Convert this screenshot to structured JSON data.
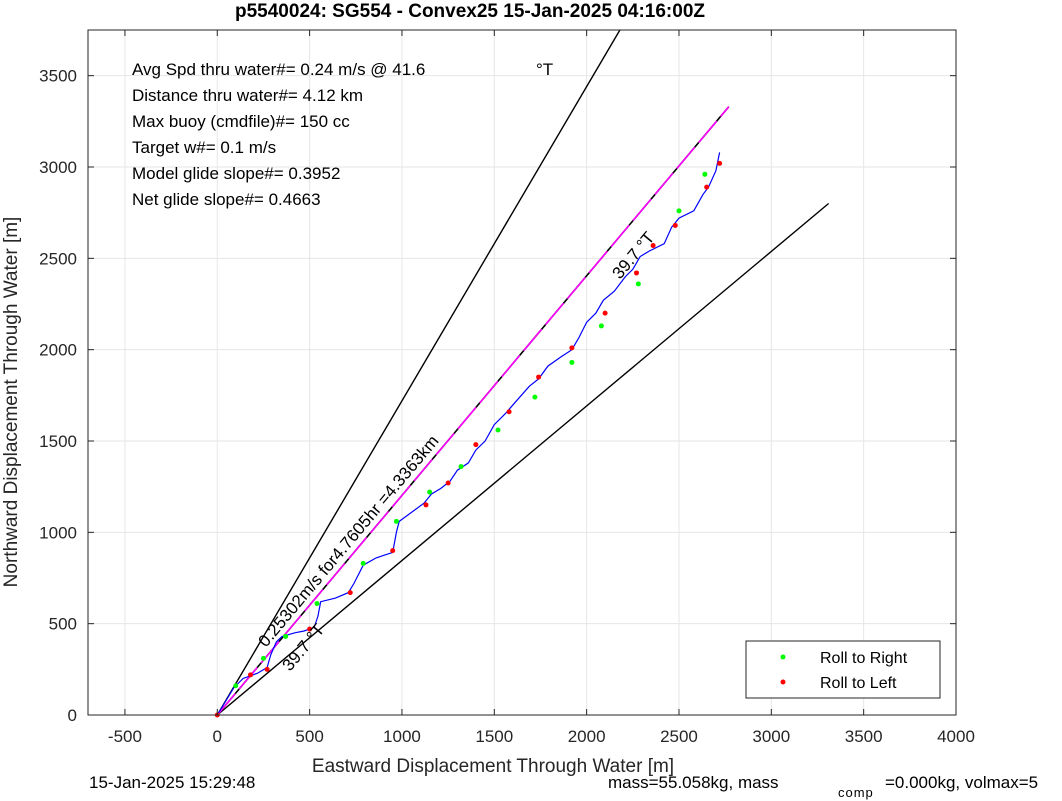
{
  "chart_data": {
    "type": "line",
    "title": "p5540024: SG554 - Convex25 15-Jan-2025 04:16:00Z",
    "xlabel": "Eastward Displacement Through Water [m]",
    "ylabel": "Northward Displacement Through Water [m]",
    "xlim": [
      -700,
      4000
    ],
    "ylim": [
      0,
      3750
    ],
    "xticks": [
      -500,
      0,
      500,
      1000,
      1500,
      2000,
      2500,
      3000,
      3500,
      4000
    ],
    "yticks": [
      0,
      500,
      1000,
      1500,
      2000,
      2500,
      3000,
      3500
    ],
    "grid": true,
    "legend_position": "bottom-right",
    "annotations": [
      "Avg Spd thru water#=  0.24 m/s @  41.6",
      "°T",
      "Distance thru water#=  4.12 km",
      "Max buoy (cmdfile)#= 150 cc",
      "Target w#= 0.1 m/s",
      "Model glide slope#= 0.3952",
      "Net glide slope#= 0.4663"
    ],
    "rotated_labels": {
      "heading_upper": "39.7 °T",
      "heading_lower": "39.7 °T",
      "speed": "0.25302m/s for4.7605hr =4.3363km"
    },
    "colors": {
      "track": "#0000ff",
      "model_line": "#ff00ff",
      "dashed": "#000000",
      "wedge": "#000000",
      "roll_right": "#00ff00",
      "roll_left": "#ff0000",
      "grid": "#e6e6e6"
    },
    "series": [
      {
        "kind": "wedge",
        "x": [
          2180,
          0,
          3310
        ],
        "y": [
          3750,
          0,
          2800
        ]
      },
      {
        "kind": "model",
        "x": [
          0,
          2770
        ],
        "y": [
          0,
          3330
        ]
      },
      {
        "kind": "track",
        "x": [
          0,
          90,
          140,
          220,
          270,
          290,
          320,
          350,
          420,
          470,
          500,
          525,
          545,
          560,
          640,
          710,
          740,
          790,
          860,
          950,
          970,
          985,
          1120,
          1160,
          1210,
          1260,
          1300,
          1360,
          1400,
          1450,
          1500,
          1560,
          1620,
          1690,
          1740,
          1790,
          1860,
          1920,
          1960,
          2000,
          2050,
          2090,
          2150,
          2210,
          2250,
          2290,
          2340,
          2420,
          2460,
          2500,
          2580,
          2630,
          2660,
          2700,
          2720
        ],
        "y": [
          0,
          150,
          200,
          230,
          260,
          330,
          400,
          430,
          450,
          460,
          470,
          480,
          540,
          620,
          640,
          670,
          720,
          820,
          860,
          890,
          1000,
          1060,
          1160,
          1210,
          1240,
          1280,
          1340,
          1380,
          1450,
          1500,
          1590,
          1650,
          1720,
          1800,
          1840,
          1910,
          1960,
          2000,
          2070,
          2150,
          2200,
          2270,
          2320,
          2400,
          2440,
          2510,
          2540,
          2580,
          2670,
          2720,
          2760,
          2850,
          2890,
          2980,
          3080
        ]
      }
    ],
    "roll_to_right": {
      "x": [
        100,
        250,
        370,
        540,
        790,
        970,
        1150,
        1320,
        1520,
        1720,
        1920,
        2080,
        2280,
        2500,
        2640
      ],
      "y": [
        160,
        310,
        430,
        610,
        830,
        1060,
        1220,
        1360,
        1560,
        1740,
        1930,
        2130,
        2360,
        2760,
        2960
      ]
    },
    "roll_to_left": {
      "x": [
        180,
        270,
        500,
        720,
        950,
        1130,
        1250,
        1400,
        1580,
        1740,
        1920,
        2100,
        2270,
        2360,
        2480,
        2650,
        2720
      ],
      "y": [
        220,
        250,
        470,
        670,
        900,
        1150,
        1270,
        1480,
        1660,
        1850,
        2010,
        2200,
        2420,
        2570,
        2680,
        2890,
        3020
      ]
    },
    "legend": [
      {
        "label": "Roll to Right",
        "color": "#00ff00"
      },
      {
        "label": "Roll to Left",
        "color": "#ff0000"
      }
    ]
  },
  "footer": {
    "timestamp": "15-Jan-2025 15:29:48",
    "mass_text": "mass=55.058kg, mass",
    "comp_sub": "comp",
    "mass_comp_text": "=0.000kg, volmax=5"
  }
}
